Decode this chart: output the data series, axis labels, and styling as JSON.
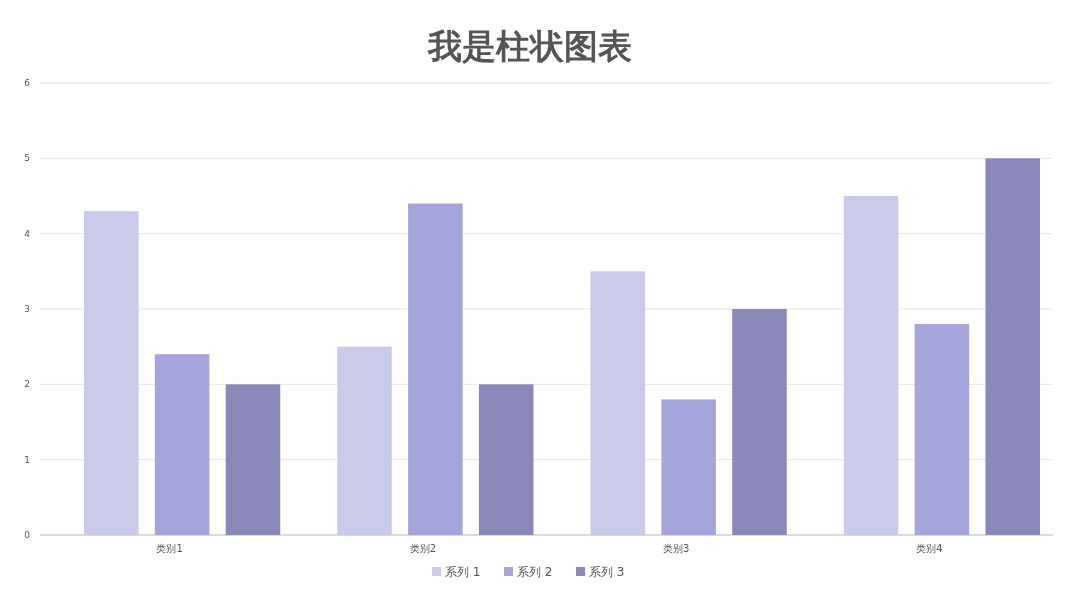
{
  "chart_data": {
    "type": "bar",
    "title": "我是柱状图表",
    "categories": [
      "类别1",
      "类别2",
      "类别3",
      "类别4"
    ],
    "series": [
      {
        "name": "系列 1",
        "color": "#cacbea",
        "values": [
          4.3,
          2.5,
          3.5,
          4.5
        ]
      },
      {
        "name": "系列 2",
        "color": "#a5a5dc",
        "values": [
          2.4,
          4.4,
          1.8,
          2.8
        ]
      },
      {
        "name": "系列 3",
        "color": "#8a88b9",
        "values": [
          2,
          2,
          3,
          5
        ]
      }
    ],
    "ylim": [
      0,
      6
    ],
    "yticks": [
      0,
      1,
      2,
      3,
      4,
      5,
      6
    ],
    "grid": "y",
    "legend": "bottom"
  }
}
